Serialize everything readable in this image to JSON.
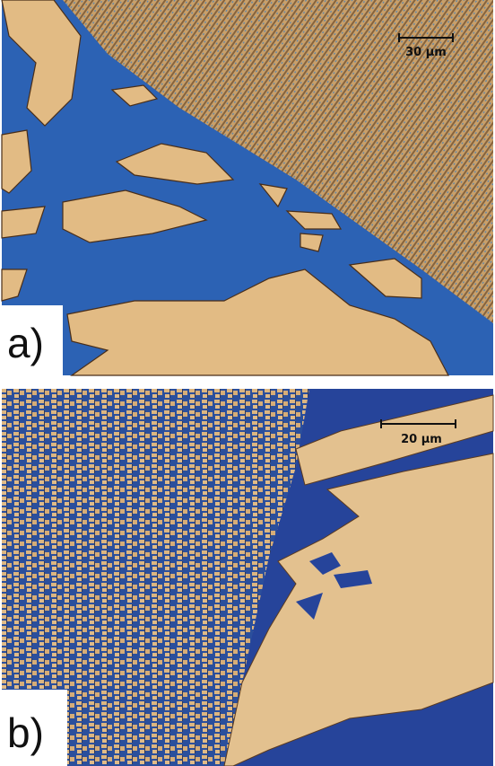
{
  "panels": [
    {
      "label": "a)",
      "scale_bar": "30 μm"
    },
    {
      "label": "b)",
      "scale_bar": "20 μm"
    }
  ]
}
